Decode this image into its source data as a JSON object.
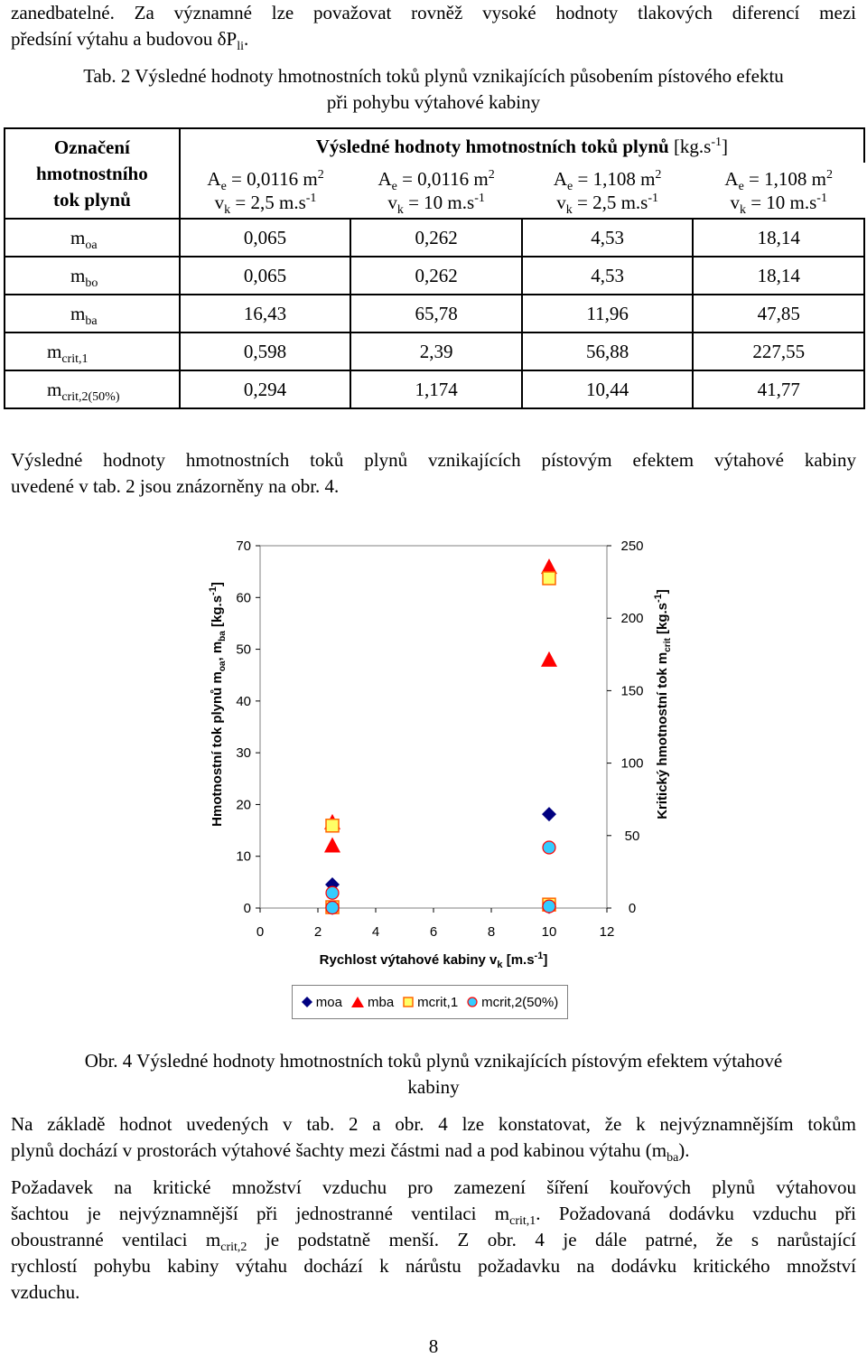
{
  "intro": {
    "line1": "zanedbatelné.  Za významné lze považovat rovněž vysoké hodnoty tlakových diferencí mezi",
    "line2_pre": "předsíní výtahu a budovou δP",
    "line2_sub": "li",
    "line2_post": "."
  },
  "table_caption": {
    "line1": "Tab. 2 Výsledné hodnoty hmotnostních toků plynů vznikajících působením pístového efektu",
    "line2": "při pohybu výtahové kabiny"
  },
  "table": {
    "corner_label_1": "Označení",
    "corner_label_2": "hmotnostního",
    "corner_label_3": "tok plynů",
    "group_header": "Výsledné hodnoty hmotnostních toků plynů",
    "group_unit": "[kg.s",
    "group_unit_sup": "-1",
    "group_unit_end": "]",
    "columns": [
      {
        "ae": "A",
        "ae_sub": "e",
        "ae_val": " = 0,0116 m",
        "ae_sup": "2",
        "vk": "v",
        "vk_sub": "k",
        "vk_val": " = 2,5 m.s",
        "vk_sup": "-1"
      },
      {
        "ae": "A",
        "ae_sub": "e",
        "ae_val": " = 0,0116 m",
        "ae_sup": "2",
        "vk": "v",
        "vk_sub": "k",
        "vk_val": " = 10 m.s",
        "vk_sup": "-1"
      },
      {
        "ae": "A",
        "ae_sub": "e",
        "ae_val": " = 1,108 m",
        "ae_sup": "2",
        "vk": "v",
        "vk_sub": "k",
        "vk_val": " = 2,5 m.s",
        "vk_sup": "-1"
      },
      {
        "ae": "A",
        "ae_sub": "e",
        "ae_val": " = 1,108 m",
        "ae_sup": "2",
        "vk": "v",
        "vk_sub": "k",
        "vk_val": " = 10 m.s",
        "vk_sup": "-1"
      }
    ],
    "rows": [
      {
        "m": "m",
        "sub": "oa",
        "values": [
          "0,065",
          "0,262",
          "4,53",
          "18,14"
        ]
      },
      {
        "m": "m",
        "sub": "bo",
        "values": [
          "0,065",
          "0,262",
          "4,53",
          "18,14"
        ]
      },
      {
        "m": "m",
        "sub": "ba",
        "values": [
          "16,43",
          "65,78",
          "11,96",
          "47,85"
        ]
      },
      {
        "m": "m",
        "sub": "crit,1",
        "values": [
          "0,598",
          "2,39",
          "56,88",
          "227,55"
        ]
      },
      {
        "m": "m",
        "sub": "crit,2(50%)",
        "values": [
          "0,294",
          "1,174",
          "10,44",
          "41,77"
        ]
      }
    ]
  },
  "para_after_table": {
    "line1": "Výsledné hodnoty hmotnostních toků plynů vznikajících pístovým efektem výtahové kabiny",
    "line2": "uvedené v tab. 2 jsou znázorněny na obr. 4."
  },
  "chart_data": {
    "type": "scatter",
    "xlabel": "Rychlost výtahové kabiny v",
    "xlabel_sub": "k",
    "xlabel_unit": " [m.s",
    "xlabel_unit_sup": "-1",
    "xlabel_end": "]",
    "ylabel_left": "Hmotnostní tok plynů m",
    "ylabel_left_sub1": "oa",
    "ylabel_left_mid": ", m",
    "ylabel_left_sub2": "ba",
    "ylabel_left_unit": "  [kg.s",
    "ylabel_left_unit_sup": "-1",
    "ylabel_left_end": "]",
    "ylabel_right": "Kritický hmotnostní tok m",
    "ylabel_right_sub": "crit",
    "ylabel_right_unit": "  [kg.s",
    "ylabel_right_unit_sup": "-1",
    "ylabel_right_end": "]",
    "xlim": [
      0,
      12
    ],
    "xticks": [
      "0",
      "2",
      "4",
      "6",
      "8",
      "10",
      "12"
    ],
    "ylim_left": [
      0,
      70
    ],
    "yticks_left": [
      "0",
      "10",
      "20",
      "30",
      "40",
      "50",
      "60",
      "70"
    ],
    "ylim_right": [
      0,
      250
    ],
    "yticks_right": [
      "0",
      "50",
      "100",
      "150",
      "200",
      "250"
    ],
    "grid": false,
    "legend_position": "bottom",
    "series": [
      {
        "name": "moa",
        "axis": "left",
        "marker": "diamond",
        "color": "#000080",
        "points": [
          [
            2.5,
            0.065
          ],
          [
            10,
            0.262
          ],
          [
            2.5,
            4.53
          ],
          [
            10,
            18.14
          ]
        ]
      },
      {
        "name": "mba",
        "axis": "left",
        "marker": "triangle",
        "color": "#ff0000",
        "points": [
          [
            2.5,
            16.43
          ],
          [
            10,
            65.78
          ],
          [
            2.5,
            11.96
          ],
          [
            10,
            47.85
          ]
        ]
      },
      {
        "name": "mcrit,1",
        "axis": "right",
        "marker": "square",
        "color": "#ffff66",
        "points": [
          [
            2.5,
            0.598
          ],
          [
            10,
            2.39
          ],
          [
            2.5,
            56.88
          ],
          [
            10,
            227.55
          ]
        ]
      },
      {
        "name": "mcrit,2(50%)",
        "axis": "right",
        "marker": "circle",
        "color": "#33ccff",
        "points": [
          [
            2.5,
            0.294
          ],
          [
            10,
            1.174
          ],
          [
            2.5,
            10.44
          ],
          [
            10,
            41.77
          ]
        ]
      }
    ]
  },
  "legend": {
    "items": [
      "moa",
      "mba",
      "mcrit,1",
      "mcrit,2(50%)"
    ]
  },
  "figure_caption": {
    "line1": "Obr. 4 Výsledné hodnoty hmotnostních toků plynů vznikajících pístovým efektem výtahové",
    "line2": "kabiny"
  },
  "para2": {
    "line1": "Na základě hodnot uvedených v tab. 2 a obr. 4 lze konstatovat, že k nejvýznamnějším tokům",
    "line2_pre": "plynů dochází v prostorách výtahové šachty mezi částmi nad a pod kabinou výtahu (m",
    "line2_sub": "ba",
    "line2_post": ")."
  },
  "para3": {
    "line1": "Požadavek na kritické množství vzduchu pro zamezení šíření kouřových plynů výtahovou",
    "line2_pre": "šachtou je nejvýznamnější při jednostranné ventilaci m",
    "line2_sub": "crit,1",
    "line2_post": ". Požadovaná dodávku vzduchu při",
    "line3_pre": "oboustranné ventilaci m",
    "line3_sub": "crit,2",
    "line3_post": " je podstatně menší. Z obr. 4 je dále patrné, že s narůstající",
    "line4": "rychlostí pohybu kabiny výtahu dochází k nárůstu požadavku na dodávku kritického množství",
    "line5": "vzduchu."
  },
  "page_number": "8"
}
